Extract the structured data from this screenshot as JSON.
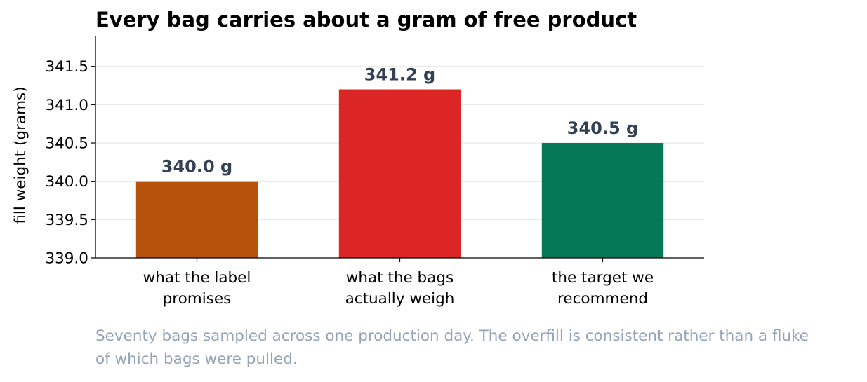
{
  "chart_data": {
    "type": "bar",
    "title": "Every bag carries about a gram of free product",
    "xlabel": "",
    "ylabel": "fill weight (grams)",
    "categories": [
      [
        "what the label",
        "promises"
      ],
      [
        "what the bags",
        "actually weigh"
      ],
      [
        "the target we",
        "recommend"
      ]
    ],
    "values": [
      340.0,
      341.2,
      340.5
    ],
    "data_labels": [
      "340.0 g",
      "341.2 g",
      "340.5 g"
    ],
    "colors": [
      "#b45309",
      "#dc2626",
      "#047857"
    ],
    "ylim": [
      339.0,
      341.9
    ],
    "yticks": [
      339.0,
      339.5,
      340.0,
      340.5,
      341.0,
      341.5
    ],
    "ytick_labels": [
      "339.0",
      "339.5",
      "340.0",
      "340.5",
      "341.0",
      "341.5"
    ],
    "grid": "horizontal",
    "legend": "none"
  },
  "caption": [
    "Seventy bags sampled across one production day. The overfill is consistent rather than a fluke",
    "of which bags were pulled."
  ]
}
